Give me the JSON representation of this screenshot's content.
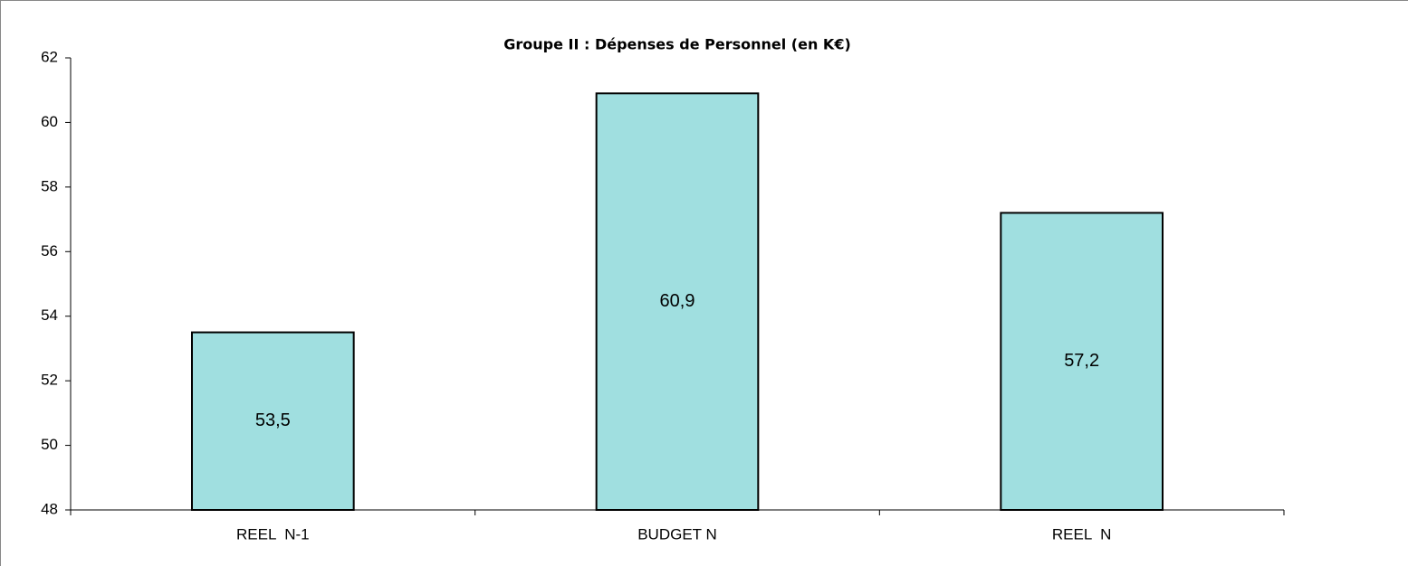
{
  "chart_data": {
    "type": "bar",
    "title": "Groupe II : Dépenses de Personnel (en K€)",
    "categories": [
      "REEL  N-1",
      "BUDGET N",
      "REEL  N"
    ],
    "values": [
      53.5,
      60.9,
      57.2
    ],
    "value_labels": [
      "53,5",
      "60,9",
      "57,2"
    ],
    "color": "#a0dfe0",
    "ylim": [
      48,
      62
    ],
    "yticks": [
      48,
      50,
      52,
      54,
      56,
      58,
      60,
      62
    ],
    "grid": false
  }
}
